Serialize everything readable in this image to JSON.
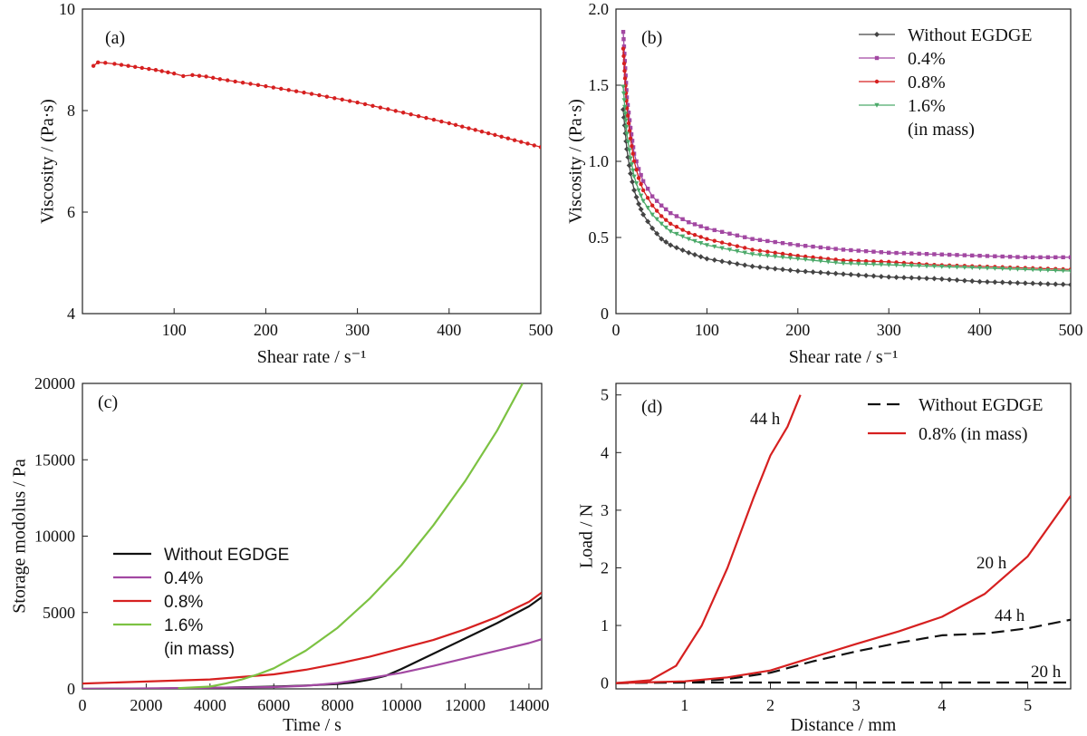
{
  "chart_data": [
    {
      "id": "a",
      "type": "line",
      "panel_label": "(a)",
      "xlabel": "Shear rate / s⁻¹",
      "ylabel": "Viscosity / (Pa·s)",
      "xlim": [
        0,
        500
      ],
      "ylim": [
        4,
        10
      ],
      "xticks": [
        100,
        200,
        300,
        400,
        500
      ],
      "yticks": [
        4,
        6,
        8,
        10
      ],
      "series": [
        {
          "color": "#d62020",
          "marker": "dot",
          "x": [
            12,
            17,
            25,
            35,
            50,
            65,
            80,
            100,
            110,
            120,
            135,
            150,
            200,
            250,
            300,
            350,
            400,
            450,
            500
          ],
          "y": [
            8.88,
            8.95,
            8.94,
            8.92,
            8.88,
            8.84,
            8.8,
            8.73,
            8.68,
            8.7,
            8.67,
            8.62,
            8.48,
            8.33,
            8.16,
            7.96,
            7.75,
            7.52,
            7.28
          ]
        }
      ]
    },
    {
      "id": "b",
      "type": "line",
      "panel_label": "(b)",
      "xlabel": "Shear rate / s⁻¹",
      "ylabel": "Viscosity / (Pa·s)",
      "xlim": [
        0,
        500
      ],
      "ylim": [
        0,
        2.0
      ],
      "xticks": [
        0,
        100,
        200,
        300,
        400,
        500
      ],
      "yticks": [
        0,
        0.5,
        1.0,
        1.5,
        2.0
      ],
      "ytick_labels": [
        "0",
        "0.5",
        "1.0",
        "1.5",
        "2.0"
      ],
      "legend_position": "top-right",
      "legend_note": "(in mass)",
      "series": [
        {
          "name": "Without EGDGE",
          "color": "#444444",
          "marker": "diamond",
          "x": [
            8,
            12,
            16,
            20,
            25,
            30,
            40,
            50,
            60,
            80,
            100,
            150,
            200,
            250,
            300,
            350,
            400,
            450,
            500
          ],
          "y": [
            1.34,
            1.08,
            0.92,
            0.81,
            0.72,
            0.65,
            0.56,
            0.49,
            0.45,
            0.4,
            0.36,
            0.31,
            0.28,
            0.26,
            0.24,
            0.23,
            0.21,
            0.2,
            0.19
          ]
        },
        {
          "name": "0.4%",
          "color": "#a248a2",
          "marker": "square",
          "x": [
            8,
            12,
            16,
            20,
            25,
            30,
            40,
            50,
            60,
            80,
            100,
            150,
            200,
            250,
            300,
            350,
            400,
            450,
            500
          ],
          "y": [
            1.85,
            1.42,
            1.22,
            1.05,
            0.95,
            0.87,
            0.77,
            0.71,
            0.66,
            0.6,
            0.56,
            0.49,
            0.45,
            0.42,
            0.4,
            0.39,
            0.38,
            0.37,
            0.37
          ]
        },
        {
          "name": "0.8%",
          "color": "#d62020",
          "marker": "dot",
          "x": [
            8,
            12,
            16,
            20,
            25,
            30,
            40,
            50,
            60,
            80,
            100,
            150,
            200,
            250,
            300,
            350,
            400,
            450,
            500
          ],
          "y": [
            1.74,
            1.35,
            1.15,
            1.0,
            0.89,
            0.81,
            0.71,
            0.64,
            0.59,
            0.53,
            0.49,
            0.42,
            0.38,
            0.35,
            0.34,
            0.32,
            0.31,
            0.3,
            0.29
          ]
        },
        {
          "name": "1.6%",
          "color": "#4caa6a",
          "marker": "triangle-down",
          "x": [
            8,
            12,
            16,
            20,
            25,
            30,
            40,
            50,
            60,
            80,
            100,
            150,
            200,
            250,
            300,
            350,
            400,
            450,
            500
          ],
          "y": [
            1.49,
            1.18,
            1.02,
            0.9,
            0.81,
            0.74,
            0.65,
            0.59,
            0.54,
            0.49,
            0.45,
            0.39,
            0.36,
            0.33,
            0.32,
            0.31,
            0.3,
            0.29,
            0.28
          ]
        }
      ]
    },
    {
      "id": "c",
      "type": "line",
      "panel_label": "(c)",
      "xlabel": "Time / s",
      "ylabel": "Storage modolus / Pa",
      "xlim": [
        0,
        14400
      ],
      "ylim": [
        0,
        20000
      ],
      "xticks": [
        0,
        2000,
        4000,
        6000,
        8000,
        10000,
        12000,
        14000
      ],
      "yticks": [
        0,
        5000,
        10000,
        15000,
        20000
      ],
      "legend_position": "middle-left",
      "legend_note": "(in mass)",
      "series": [
        {
          "name": "Without EGDGE",
          "color": "#111111",
          "x": [
            0,
            2000,
            4000,
            6000,
            7000,
            8000,
            8500,
            9000,
            9500,
            10000,
            11000,
            12000,
            13000,
            14000,
            14400
          ],
          "y": [
            0,
            20,
            60,
            150,
            220,
            320,
            420,
            600,
            850,
            1300,
            2300,
            3300,
            4300,
            5400,
            6000
          ]
        },
        {
          "name": "0.4%",
          "color": "#a248a2",
          "x": [
            0,
            2000,
            4000,
            6000,
            7000,
            8000,
            9000,
            10000,
            11000,
            12000,
            13000,
            14000,
            14400
          ],
          "y": [
            0,
            30,
            70,
            120,
            200,
            380,
            700,
            1050,
            1500,
            2000,
            2500,
            3000,
            3250
          ]
        },
        {
          "name": "0.8%",
          "color": "#d62020",
          "x": [
            0,
            2000,
            4000,
            6000,
            7000,
            8000,
            9000,
            10000,
            11000,
            12000,
            13000,
            14000,
            14400
          ],
          "y": [
            350,
            480,
            620,
            950,
            1250,
            1650,
            2100,
            2650,
            3200,
            3900,
            4700,
            5700,
            6300
          ]
        },
        {
          "name": "1.6%",
          "color": "#7cc242",
          "x": [
            3000,
            4000,
            4500,
            5000,
            5500,
            6000,
            7000,
            8000,
            9000,
            10000,
            11000,
            12000,
            13000,
            13800
          ],
          "y": [
            50,
            150,
            350,
            620,
            950,
            1350,
            2500,
            4000,
            5900,
            8100,
            10700,
            13600,
            16900,
            20000
          ]
        }
      ]
    },
    {
      "id": "d",
      "type": "line",
      "panel_label": "(d)",
      "xlabel": "Distance / mm",
      "ylabel": "Load / N",
      "xlim": [
        0.2,
        5.5
      ],
      "ylim": [
        -0.1,
        5.2
      ],
      "xticks": [
        1,
        2,
        3,
        4,
        5
      ],
      "yticks": [
        0,
        1,
        2,
        3,
        4,
        5
      ],
      "legend_position": "top-right",
      "series": [
        {
          "name": "Without EGDGE",
          "color": "#111111",
          "dash": true,
          "x": [
            0.2,
            1.0,
            1.5,
            2.0,
            2.5,
            3.0,
            3.5,
            4.0,
            4.5,
            5.0,
            5.5
          ],
          "y": [
            0,
            0.01,
            0.01,
            0.01,
            0.01,
            0.01,
            0.01,
            0.01,
            0.01,
            0.01,
            0.01
          ],
          "annotation": "20 h"
        },
        {
          "name": "Without EGDGE",
          "color": "#111111",
          "dash": true,
          "x": [
            0.2,
            1.0,
            1.5,
            2.0,
            2.5,
            3.0,
            3.5,
            4.0,
            4.5,
            5.0,
            5.5
          ],
          "y": [
            0,
            0.02,
            0.07,
            0.18,
            0.38,
            0.55,
            0.7,
            0.83,
            0.86,
            0.95,
            1.1
          ],
          "annotation": "44 h"
        },
        {
          "name": "0.8% (in mass)",
          "color": "#d62020",
          "x": [
            0.2,
            1.0,
            1.5,
            2.0,
            2.5,
            3.0,
            3.5,
            4.0,
            4.5,
            5.0,
            5.5
          ],
          "y": [
            0,
            0.03,
            0.1,
            0.22,
            0.45,
            0.68,
            0.9,
            1.15,
            1.55,
            2.2,
            3.25
          ],
          "annotation": "20 h"
        },
        {
          "name": "0.8% (in mass)",
          "color": "#d62020",
          "x": [
            0.2,
            0.6,
            0.9,
            1.2,
            1.5,
            1.8,
            2.0,
            2.2,
            2.35
          ],
          "y": [
            0,
            0.05,
            0.3,
            1.0,
            2.0,
            3.2,
            3.95,
            4.45,
            5.0
          ],
          "annotation": "44 h"
        }
      ]
    }
  ]
}
